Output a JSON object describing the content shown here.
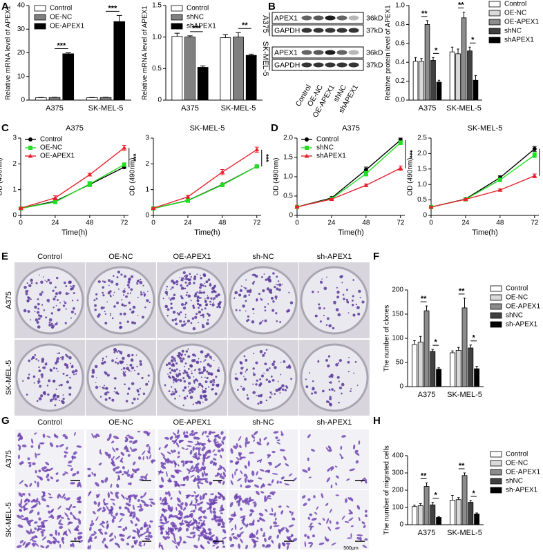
{
  "panel_labels": [
    "A",
    "B",
    "C",
    "D",
    "E",
    "F",
    "G",
    "H"
  ],
  "chart_data": [
    {
      "type": "bar",
      "ylabel": "Relative mRNA level of APEX1",
      "categories": [
        "A375",
        "SK-MEL-5"
      ],
      "series": [
        {
          "name": "Control",
          "color": "#ffffff",
          "values": [
            1,
            1
          ],
          "errors": [
            0.1,
            0.1
          ]
        },
        {
          "name": "OE-NC",
          "color": "#808080",
          "values": [
            1.1,
            1.1
          ],
          "errors": [
            0.1,
            0.1
          ]
        },
        {
          "name": "OE-APEX1",
          "color": "#000000",
          "values": [
            19.6,
            33.2
          ],
          "errors": [
            0.4,
            2.6
          ]
        }
      ],
      "ylim": [
        0,
        40
      ],
      "yticks": [
        0,
        10,
        20,
        30,
        40
      ],
      "legend": "upper left",
      "annotations": [
        "***",
        "***"
      ]
    },
    {
      "type": "bar",
      "ylabel": "Relative mRNA level of APEX1",
      "categories": [
        "A375",
        "SK-MEL-5"
      ],
      "series": [
        {
          "name": "Control",
          "color": "#ffffff",
          "values": [
            1.01,
            0.99
          ],
          "errors": [
            0.05,
            0.05
          ]
        },
        {
          "name": "shNC",
          "color": "#808080",
          "values": [
            1.0,
            1.0
          ],
          "errors": [
            0.02,
            0.07
          ]
        },
        {
          "name": "shAPEX1",
          "color": "#000000",
          "values": [
            0.52,
            0.71
          ],
          "errors": [
            0.02,
            0.02
          ]
        }
      ],
      "ylim": [
        0,
        1.5
      ],
      "yticks": [
        0,
        0.5,
        {
          "value": 1,
          "label": "1.0"
        },
        1.5
      ],
      "legend": "upper left",
      "annotations": [
        "***",
        "**"
      ]
    },
    {
      "type": "bar",
      "ylabel": "Relative protein level of APEX1",
      "categories": [
        "A375",
        "SK-MEL-5"
      ],
      "series": [
        {
          "name": "Control",
          "color": "#ffffff",
          "values": [
            0.41,
            0.51
          ],
          "errors": [
            0.04,
            0.05
          ]
        },
        {
          "name": "OE-NC",
          "color": "#d9d9d9",
          "values": [
            0.41,
            0.49
          ],
          "errors": [
            0.03,
            0.05
          ]
        },
        {
          "name": "OE-APEX1",
          "color": "#8c8c8c",
          "values": [
            0.8,
            0.87
          ],
          "errors": [
            0.04,
            0.06
          ]
        },
        {
          "name": "shNC",
          "color": "#404040",
          "values": [
            0.42,
            0.52
          ],
          "errors": [
            0.03,
            0.04
          ]
        },
        {
          "name": "shAPEX1",
          "color": "#000000",
          "values": [
            0.19,
            0.21
          ],
          "errors": [
            0.02,
            0.05
          ]
        }
      ],
      "ylim": [
        0,
        1
      ],
      "yticks": [
        {
          "value": 0,
          "label": "0.0"
        },
        0.2,
        0.4,
        0.6,
        0.8,
        {
          "value": 1,
          "label": "1.0"
        }
      ],
      "legend": "right",
      "annotations": [
        "**",
        "*",
        "**",
        "*"
      ]
    },
    {
      "type": "line",
      "title": "A375",
      "xlabel": "Time(h)",
      "ylabel": "OD (490nm)",
      "x": [
        0,
        24,
        48,
        72
      ],
      "xlim": [
        0,
        75
      ],
      "xticks": [
        0,
        24,
        48,
        72
      ],
      "ylim": [
        0,
        3
      ],
      "yticks": [
        0,
        1,
        2,
        3
      ],
      "series": [
        {
          "name": "Control",
          "color": "#000000",
          "marker": "circle",
          "values": [
            0.27,
            0.55,
            1.2,
            1.87
          ],
          "errors": [
            0.02,
            0.05,
            0.08,
            0.05
          ]
        },
        {
          "name": "OE-NC",
          "color": "#1ee01e",
          "marker": "square",
          "values": [
            0.27,
            0.52,
            1.22,
            1.97
          ],
          "errors": [
            0.02,
            0.04,
            0.1,
            0.07
          ]
        },
        {
          "name": "OE-APEX1",
          "color": "#e8202a",
          "marker": "triangle",
          "values": [
            0.28,
            0.68,
            1.58,
            2.62
          ],
          "errors": [
            0.02,
            0.08,
            0.05,
            0.1
          ]
        }
      ],
      "legend": "upper left",
      "annotations": [
        "***"
      ]
    },
    {
      "type": "line",
      "title": "SK-MEL-5",
      "xlabel": "Time(h)",
      "ylabel": "OD (490nm)",
      "x": [
        0,
        24,
        48,
        72
      ],
      "xlim": [
        0,
        75
      ],
      "xticks": [
        0,
        24,
        48,
        72
      ],
      "ylim": [
        0,
        3
      ],
      "yticks": [
        0,
        1,
        2,
        3
      ],
      "series": [
        {
          "name": "Control",
          "color": "#000000",
          "marker": "circle",
          "values": [
            0.27,
            0.58,
            1.2,
            1.9
          ],
          "errors": [
            0.02,
            0.04,
            0.05,
            0.05
          ]
        },
        {
          "name": "OE-NC",
          "color": "#1ee01e",
          "marker": "square",
          "values": [
            0.27,
            0.57,
            1.18,
            1.9
          ],
          "errors": [
            0.02,
            0.04,
            0.06,
            0.06
          ]
        },
        {
          "name": "OE-APEX1",
          "color": "#e8202a",
          "marker": "triangle",
          "values": [
            0.28,
            0.72,
            1.68,
            2.55
          ],
          "errors": [
            0.02,
            0.05,
            0.1,
            0.1
          ]
        }
      ],
      "annotations": [
        "***"
      ]
    },
    {
      "type": "line",
      "title": "A375",
      "xlabel": "Time(h)",
      "ylabel": "OD (490nm)",
      "x": [
        0,
        24,
        48,
        72
      ],
      "xlim": [
        0,
        75
      ],
      "xticks": [
        0,
        24,
        48,
        72
      ],
      "ylim": [
        0,
        2
      ],
      "yticks": [
        0,
        0.5,
        {
          "value": 1,
          "label": "1.0"
        },
        1.5,
        {
          "value": 2,
          "label": "2.0"
        }
      ],
      "series": [
        {
          "name": "Control",
          "color": "#000000",
          "marker": "circle",
          "values": [
            0.22,
            0.45,
            1.18,
            1.95
          ],
          "errors": [
            0.02,
            0.03,
            0.07,
            0.05
          ]
        },
        {
          "name": "shNC",
          "color": "#1ee01e",
          "marker": "square",
          "values": [
            0.22,
            0.43,
            1.08,
            1.88
          ],
          "errors": [
            0.02,
            0.03,
            0.06,
            0.05
          ]
        },
        {
          "name": "shAPEX1",
          "color": "#e8202a",
          "marker": "triangle",
          "values": [
            0.22,
            0.42,
            0.78,
            1.22
          ],
          "errors": [
            0.02,
            0.02,
            0.03,
            0.06
          ]
        }
      ],
      "legend": "upper left",
      "annotations": [
        "***"
      ]
    },
    {
      "type": "line",
      "title": "SK-MEL-5",
      "xlabel": "Time(h)",
      "ylabel": "OD (490nm)",
      "x": [
        0,
        24,
        48,
        72
      ],
      "xlim": [
        0,
        75
      ],
      "xticks": [
        0,
        24,
        48,
        72
      ],
      "ylim": [
        0,
        2.5
      ],
      "yticks": [
        0,
        0.5,
        {
          "value": 1,
          "label": "1.0"
        },
        1.5,
        {
          "value": 2,
          "label": "2.0"
        },
        2.5
      ],
      "series": [
        {
          "name": "Control",
          "color": "#000000",
          "marker": "circle",
          "values": [
            0.27,
            0.53,
            1.22,
            2.15
          ],
          "errors": [
            0.02,
            0.03,
            0.06,
            0.08
          ]
        },
        {
          "name": "shNC",
          "color": "#1ee01e",
          "marker": "square",
          "values": [
            0.27,
            0.52,
            1.15,
            1.95
          ],
          "errors": [
            0.02,
            0.03,
            0.06,
            0.08
          ]
        },
        {
          "name": "shAPEX1",
          "color": "#e8202a",
          "marker": "triangle",
          "values": [
            0.27,
            0.52,
            0.82,
            1.28
          ],
          "errors": [
            0.02,
            0.03,
            0.03,
            0.06
          ]
        }
      ],
      "annotations": [
        "***"
      ]
    },
    {
      "type": "bar",
      "ylabel": "The number of clones",
      "categories": [
        "A375",
        "SK-MEL-5"
      ],
      "series": [
        {
          "name": "Control",
          "color": "#ffffff",
          "values": [
            87,
            70
          ],
          "errors": [
            8,
            4
          ]
        },
        {
          "name": "OE-NC",
          "color": "#d9d9d9",
          "values": [
            92,
            75
          ],
          "errors": [
            12,
            6
          ]
        },
        {
          "name": "OE-APEX1",
          "color": "#8c8c8c",
          "values": [
            157,
            163
          ],
          "errors": [
            10,
            20
          ]
        },
        {
          "name": "shNC",
          "color": "#404040",
          "values": [
            73,
            80
          ],
          "errors": [
            4,
            6
          ]
        },
        {
          "name": "sh-APEX1",
          "color": "#000000",
          "values": [
            36,
            37
          ],
          "errors": [
            3,
            5
          ]
        }
      ],
      "ylim": [
        0,
        200
      ],
      "yticks": [
        0,
        50,
        100,
        150,
        200
      ],
      "legend": "right",
      "annotations": [
        "**",
        "*",
        "**",
        "*"
      ]
    },
    {
      "type": "bar",
      "ylabel": "The number of migrated cells",
      "categories": [
        "A375",
        "SK-MEL-5"
      ],
      "series": [
        {
          "name": "Control",
          "color": "#ffffff",
          "values": [
            105,
            142
          ],
          "errors": [
            8,
            28
          ]
        },
        {
          "name": "OE-NC",
          "color": "#d9d9d9",
          "values": [
            110,
            145
          ],
          "errors": [
            12,
            12
          ]
        },
        {
          "name": "OE-APEX1",
          "color": "#8c8c8c",
          "values": [
            222,
            285
          ],
          "errors": [
            20,
            15
          ]
        },
        {
          "name": "shNC",
          "color": "#404040",
          "values": [
            115,
            130
          ],
          "errors": [
            14,
            10
          ]
        },
        {
          "name": "sh-APEX1",
          "color": "#000000",
          "values": [
            42,
            62
          ],
          "errors": [
            5,
            6
          ]
        }
      ],
      "ylim": [
        0,
        400
      ],
      "yticks": [
        0,
        100,
        200,
        300,
        400
      ],
      "legend": "right",
      "annotations": [
        "**",
        "*",
        "**",
        "*"
      ]
    }
  ],
  "blot": {
    "proteins": [
      "APEX1",
      "GAPDH"
    ],
    "sizes": [
      "36kD",
      "37kD"
    ],
    "cell_lines": [
      "A375",
      "SK-MEL-5"
    ],
    "lanes": [
      "Control",
      "OE-NC",
      "OE-APEX1",
      "shNC",
      "shAPEX1"
    ]
  },
  "colony": {
    "columns": [
      "Control",
      "OE-NC",
      "OE-APEX1",
      "sh-NC",
      "sh-APEX1"
    ],
    "rows": [
      "A375",
      "SK-MEL-5"
    ]
  },
  "migration": {
    "columns": [
      "Control",
      "OE-NC",
      "OE-APEX1",
      "sh-NC",
      "sh-APEX1"
    ],
    "rows": [
      "A375",
      "SK-MEL-5"
    ],
    "scale_bar": "500μm"
  }
}
